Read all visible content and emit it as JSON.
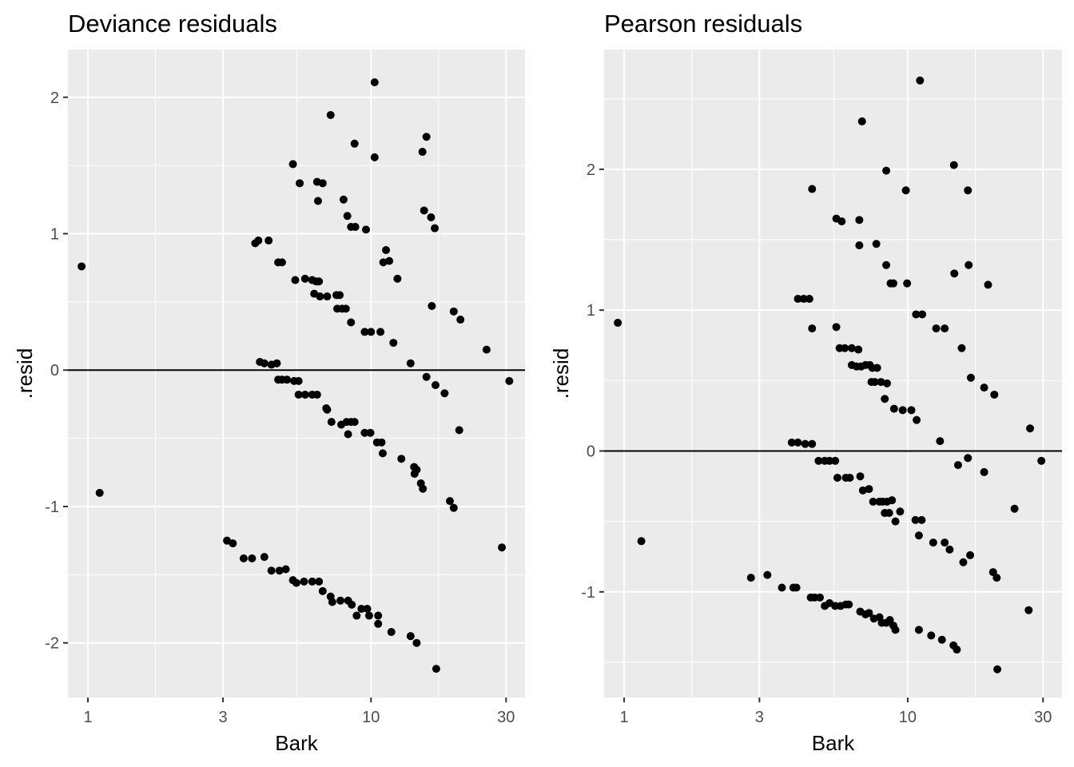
{
  "chart_data": [
    {
      "type": "scatter",
      "title": "Deviance residuals",
      "xlabel": "Bark",
      "ylabel": ".resid",
      "x_scale": "log10",
      "xlim": [
        0.85,
        35
      ],
      "ylim": [
        -2.4,
        2.35
      ],
      "x_ticks": [
        1,
        3,
        10,
        30
      ],
      "x_tick_labels": [
        "1",
        "3",
        "10",
        "30"
      ],
      "y_ticks": [
        -2,
        -1,
        0,
        1,
        2
      ],
      "y_tick_labels": [
        "-2",
        "-1",
        "0",
        "1",
        "2"
      ],
      "hline": 0,
      "points": [
        [
          0.95,
          0.76
        ],
        [
          1.1,
          -0.9
        ],
        [
          3.1,
          -1.25
        ],
        [
          3.25,
          -1.27
        ],
        [
          3.55,
          -1.38
        ],
        [
          3.8,
          -1.38
        ],
        [
          4.2,
          -1.37
        ],
        [
          4.45,
          -1.47
        ],
        [
          4.75,
          -1.47
        ],
        [
          5.0,
          -1.46
        ],
        [
          5.3,
          -1.54
        ],
        [
          5.45,
          -1.56
        ],
        [
          5.8,
          -1.55
        ],
        [
          6.2,
          -1.55
        ],
        [
          6.55,
          -1.55
        ],
        [
          6.75,
          -1.62
        ],
        [
          7.2,
          -1.66
        ],
        [
          7.3,
          -1.7
        ],
        [
          7.8,
          -1.69
        ],
        [
          8.3,
          -1.69
        ],
        [
          8.55,
          -1.72
        ],
        [
          8.9,
          -1.8
        ],
        [
          9.25,
          -1.75
        ],
        [
          9.7,
          -1.75
        ],
        [
          9.85,
          -1.8
        ],
        [
          10.6,
          -1.8
        ],
        [
          10.6,
          -1.86
        ],
        [
          11.8,
          -1.92
        ],
        [
          13.8,
          -1.95
        ],
        [
          14.5,
          -2.0
        ],
        [
          17.0,
          -2.19
        ],
        [
          29.0,
          -1.3
        ],
        [
          3.9,
          0.93
        ],
        [
          4.0,
          0.95
        ],
        [
          4.35,
          0.95
        ],
        [
          4.7,
          0.79
        ],
        [
          4.85,
          0.79
        ],
        [
          5.4,
          0.66
        ],
        [
          5.85,
          0.67
        ],
        [
          6.2,
          0.66
        ],
        [
          6.4,
          0.65
        ],
        [
          6.55,
          0.65
        ],
        [
          6.3,
          0.56
        ],
        [
          6.6,
          0.54
        ],
        [
          7.0,
          0.54
        ],
        [
          7.55,
          0.55
        ],
        [
          7.75,
          0.55
        ],
        [
          7.6,
          0.45
        ],
        [
          7.9,
          0.45
        ],
        [
          8.15,
          0.45
        ],
        [
          8.5,
          0.35
        ],
        [
          9.5,
          0.28
        ],
        [
          10.0,
          0.28
        ],
        [
          10.8,
          0.28
        ],
        [
          12.0,
          0.2
        ],
        [
          13.8,
          0.05
        ],
        [
          5.3,
          1.51
        ],
        [
          5.6,
          1.37
        ],
        [
          6.45,
          1.38
        ],
        [
          6.75,
          1.37
        ],
        [
          7.2,
          1.87
        ],
        [
          6.5,
          1.24
        ],
        [
          8.0,
          1.25
        ],
        [
          8.25,
          1.13
        ],
        [
          8.5,
          1.05
        ],
        [
          8.8,
          1.05
        ],
        [
          9.6,
          1.03
        ],
        [
          10.3,
          2.11
        ],
        [
          10.3,
          1.56
        ],
        [
          8.75,
          1.66
        ],
        [
          11.05,
          0.79
        ],
        [
          11.3,
          0.88
        ],
        [
          11.6,
          0.8
        ],
        [
          12.4,
          0.67
        ],
        [
          15.2,
          1.6
        ],
        [
          15.7,
          1.71
        ],
        [
          15.4,
          1.17
        ],
        [
          16.3,
          1.12
        ],
        [
          16.8,
          1.04
        ],
        [
          16.4,
          0.47
        ],
        [
          19.6,
          0.43
        ],
        [
          20.7,
          0.37
        ],
        [
          25.6,
          0.15
        ],
        [
          4.05,
          0.06
        ],
        [
          4.2,
          0.05
        ],
        [
          4.45,
          0.04
        ],
        [
          4.65,
          0.05
        ],
        [
          4.7,
          -0.07
        ],
        [
          4.85,
          -0.07
        ],
        [
          5.05,
          -0.07
        ],
        [
          5.35,
          -0.08
        ],
        [
          5.55,
          -0.08
        ],
        [
          5.55,
          -0.18
        ],
        [
          5.85,
          -0.18
        ],
        [
          6.2,
          -0.18
        ],
        [
          6.45,
          -0.18
        ],
        [
          6.95,
          -0.28
        ],
        [
          7.0,
          -0.29
        ],
        [
          7.25,
          -0.38
        ],
        [
          7.85,
          -0.4
        ],
        [
          8.2,
          -0.38
        ],
        [
          8.3,
          -0.47
        ],
        [
          8.5,
          -0.38
        ],
        [
          8.75,
          -0.38
        ],
        [
          9.5,
          -0.46
        ],
        [
          9.95,
          -0.46
        ],
        [
          10.5,
          -0.53
        ],
        [
          10.9,
          -0.53
        ],
        [
          11.0,
          -0.61
        ],
        [
          12.8,
          -0.65
        ],
        [
          14.2,
          -0.71
        ],
        [
          14.25,
          -0.76
        ],
        [
          14.5,
          -0.73
        ],
        [
          15.0,
          -0.83
        ],
        [
          15.25,
          -0.87
        ],
        [
          15.7,
          -0.05
        ],
        [
          16.9,
          -0.11
        ],
        [
          18.2,
          -0.17
        ],
        [
          19.0,
          -0.96
        ],
        [
          19.6,
          -1.01
        ],
        [
          20.5,
          -0.44
        ],
        [
          30.8,
          -0.08
        ]
      ]
    },
    {
      "type": "scatter",
      "title": "Pearson residuals",
      "xlabel": "Bark",
      "ylabel": ".resid",
      "x_scale": "log10",
      "xlim": [
        0.85,
        35
      ],
      "ylim": [
        -1.75,
        2.85
      ],
      "x_ticks": [
        1,
        3,
        10,
        30
      ],
      "x_tick_labels": [
        "1",
        "3",
        "10",
        "30"
      ],
      "y_ticks": [
        -1,
        0,
        1,
        2
      ],
      "y_tick_labels": [
        "-1",
        "0",
        "1",
        "2"
      ],
      "hline": 0,
      "points": [
        [
          0.95,
          0.91
        ],
        [
          1.15,
          -0.64
        ],
        [
          2.8,
          -0.9
        ],
        [
          3.2,
          -0.88
        ],
        [
          3.6,
          -0.97
        ],
        [
          3.95,
          -0.97
        ],
        [
          4.05,
          -0.97
        ],
        [
          4.55,
          -1.04
        ],
        [
          4.7,
          -1.04
        ],
        [
          4.9,
          -1.04
        ],
        [
          5.1,
          -1.1
        ],
        [
          5.3,
          -1.08
        ],
        [
          5.55,
          -1.1
        ],
        [
          5.8,
          -1.1
        ],
        [
          6.05,
          -1.09
        ],
        [
          6.2,
          -1.09
        ],
        [
          6.8,
          -1.14
        ],
        [
          7.1,
          -1.16
        ],
        [
          7.3,
          -1.15
        ],
        [
          7.6,
          -1.19
        ],
        [
          7.95,
          -1.18
        ],
        [
          8.1,
          -1.22
        ],
        [
          8.4,
          -1.22
        ],
        [
          8.65,
          -1.2
        ],
        [
          8.9,
          -1.24
        ],
        [
          9.05,
          -1.27
        ],
        [
          10.95,
          -1.27
        ],
        [
          12.1,
          -1.31
        ],
        [
          13.2,
          -1.34
        ],
        [
          14.5,
          -1.38
        ],
        [
          14.9,
          -1.41
        ],
        [
          20.7,
          -1.55
        ],
        [
          26.7,
          -1.13
        ],
        [
          4.1,
          1.08
        ],
        [
          4.3,
          1.08
        ],
        [
          4.5,
          1.08
        ],
        [
          4.6,
          1.86
        ],
        [
          4.6,
          0.87
        ],
        [
          5.6,
          0.88
        ],
        [
          5.75,
          0.73
        ],
        [
          6.0,
          0.73
        ],
        [
          6.35,
          0.73
        ],
        [
          6.7,
          0.72
        ],
        [
          6.35,
          0.61
        ],
        [
          6.6,
          0.6
        ],
        [
          6.85,
          0.6
        ],
        [
          7.1,
          0.61
        ],
        [
          7.35,
          0.61
        ],
        [
          7.5,
          0.59
        ],
        [
          7.8,
          0.59
        ],
        [
          7.45,
          0.49
        ],
        [
          7.65,
          0.49
        ],
        [
          8.05,
          0.49
        ],
        [
          8.45,
          0.48
        ],
        [
          8.3,
          0.37
        ],
        [
          8.95,
          0.3
        ],
        [
          9.6,
          0.29
        ],
        [
          10.3,
          0.29
        ],
        [
          10.75,
          0.22
        ],
        [
          11.25,
          0.97
        ],
        [
          10.7,
          0.97
        ],
        [
          12.6,
          0.87
        ],
        [
          13.5,
          0.87
        ],
        [
          13.0,
          0.07
        ],
        [
          5.6,
          1.65
        ],
        [
          5.85,
          1.63
        ],
        [
          6.75,
          1.64
        ],
        [
          6.75,
          1.46
        ],
        [
          7.75,
          1.47
        ],
        [
          6.9,
          2.34
        ],
        [
          8.4,
          1.99
        ],
        [
          8.4,
          1.32
        ],
        [
          8.7,
          1.19
        ],
        [
          8.9,
          1.19
        ],
        [
          9.85,
          1.85
        ],
        [
          9.95,
          1.19
        ],
        [
          11.05,
          2.63
        ],
        [
          14.55,
          2.03
        ],
        [
          14.6,
          1.26
        ],
        [
          16.3,
          1.85
        ],
        [
          16.4,
          1.32
        ],
        [
          15.5,
          0.73
        ],
        [
          16.7,
          0.52
        ],
        [
          19.2,
          1.18
        ],
        [
          18.6,
          0.45
        ],
        [
          20.2,
          0.4
        ],
        [
          27.0,
          0.16
        ],
        [
          3.9,
          0.06
        ],
        [
          4.1,
          0.06
        ],
        [
          4.35,
          0.05
        ],
        [
          4.6,
          0.05
        ],
        [
          4.85,
          -0.07
        ],
        [
          5.1,
          -0.07
        ],
        [
          5.3,
          -0.07
        ],
        [
          5.55,
          -0.07
        ],
        [
          5.65,
          -0.19
        ],
        [
          6.05,
          -0.19
        ],
        [
          6.25,
          -0.19
        ],
        [
          6.8,
          -0.18
        ],
        [
          6.95,
          -0.28
        ],
        [
          7.3,
          -0.27
        ],
        [
          7.55,
          -0.36
        ],
        [
          7.95,
          -0.36
        ],
        [
          8.15,
          -0.36
        ],
        [
          8.45,
          -0.36
        ],
        [
          8.8,
          -0.35
        ],
        [
          8.3,
          -0.44
        ],
        [
          8.6,
          -0.44
        ],
        [
          9.05,
          -0.5
        ],
        [
          9.4,
          -0.43
        ],
        [
          10.65,
          -0.49
        ],
        [
          11.2,
          -0.49
        ],
        [
          10.95,
          -0.6
        ],
        [
          12.3,
          -0.65
        ],
        [
          13.5,
          -0.65
        ],
        [
          14.05,
          -0.7
        ],
        [
          15.05,
          -0.1
        ],
        [
          15.7,
          -0.79
        ],
        [
          16.3,
          -0.05
        ],
        [
          16.6,
          -0.74
        ],
        [
          18.6,
          -0.15
        ],
        [
          20.0,
          -0.86
        ],
        [
          20.6,
          -0.9
        ],
        [
          23.8,
          -0.41
        ],
        [
          29.6,
          -0.07
        ]
      ]
    }
  ]
}
